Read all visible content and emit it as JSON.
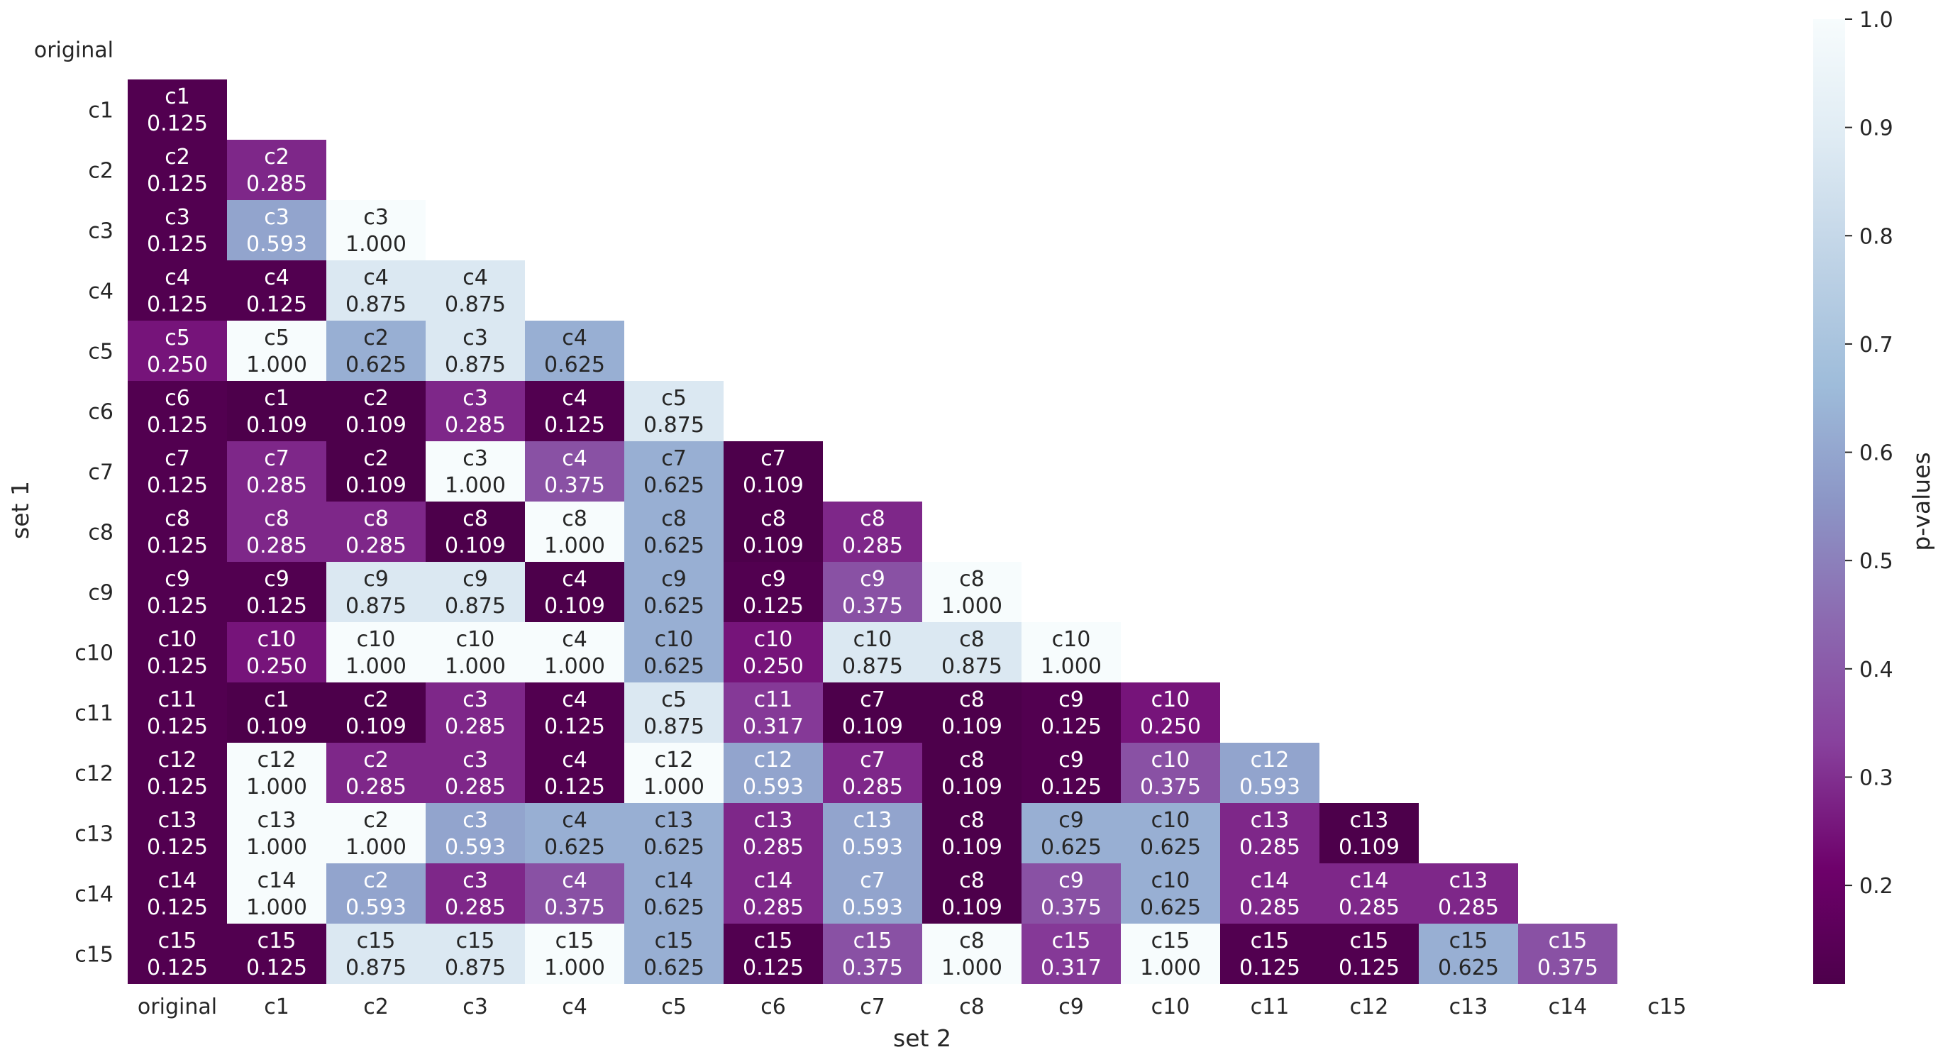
{
  "chart_data": {
    "type": "heatmap",
    "xlabel": "set 2",
    "ylabel": "set 1",
    "colorbar_label": "p-values",
    "row_labels": [
      "original",
      "c1",
      "c2",
      "c3",
      "c4",
      "c5",
      "c6",
      "c7",
      "c8",
      "c9",
      "c10",
      "c11",
      "c12",
      "c13",
      "c14",
      "c15"
    ],
    "col_labels": [
      "original",
      "c1",
      "c2",
      "c3",
      "c4",
      "c5",
      "c6",
      "c7",
      "c8",
      "c9",
      "c10",
      "c11",
      "c12",
      "c13",
      "c14",
      "c15"
    ],
    "colorbar_ticks": [
      "0.2",
      "0.3",
      "0.4",
      "0.5",
      "0.6",
      "0.7",
      "0.8",
      "0.9",
      "1.0"
    ],
    "value_range": [
      0.109,
      1.0
    ],
    "colormap": "BuPu_r",
    "cells": [
      [],
      [
        [
          "c1",
          0.125
        ]
      ],
      [
        [
          "c2",
          0.125
        ],
        [
          "c2",
          0.285
        ]
      ],
      [
        [
          "c3",
          0.125
        ],
        [
          "c3",
          0.593
        ],
        [
          "c3",
          1.0
        ]
      ],
      [
        [
          "c4",
          0.125
        ],
        [
          "c4",
          0.125
        ],
        [
          "c4",
          0.875
        ],
        [
          "c4",
          0.875
        ]
      ],
      [
        [
          "c5",
          0.25
        ],
        [
          "c5",
          1.0
        ],
        [
          "c2",
          0.625
        ],
        [
          "c3",
          0.875
        ],
        [
          "c4",
          0.625
        ]
      ],
      [
        [
          "c6",
          0.125
        ],
        [
          "c1",
          0.109
        ],
        [
          "c2",
          0.109
        ],
        [
          "c3",
          0.285
        ],
        [
          "c4",
          0.125
        ],
        [
          "c5",
          0.875
        ]
      ],
      [
        [
          "c7",
          0.125
        ],
        [
          "c7",
          0.285
        ],
        [
          "c2",
          0.109
        ],
        [
          "c3",
          1.0
        ],
        [
          "c4",
          0.375
        ],
        [
          "c7",
          0.625
        ],
        [
          "c7",
          0.109
        ]
      ],
      [
        [
          "c8",
          0.125
        ],
        [
          "c8",
          0.285
        ],
        [
          "c8",
          0.285
        ],
        [
          "c8",
          0.109
        ],
        [
          "c8",
          1.0
        ],
        [
          "c8",
          0.625
        ],
        [
          "c8",
          0.109
        ],
        [
          "c8",
          0.285
        ]
      ],
      [
        [
          "c9",
          0.125
        ],
        [
          "c9",
          0.125
        ],
        [
          "c9",
          0.875
        ],
        [
          "c9",
          0.875
        ],
        [
          "c4",
          0.109
        ],
        [
          "c9",
          0.625
        ],
        [
          "c9",
          0.125
        ],
        [
          "c9",
          0.375
        ],
        [
          "c8",
          1.0
        ]
      ],
      [
        [
          "c10",
          0.125
        ],
        [
          "c10",
          0.25
        ],
        [
          "c10",
          1.0
        ],
        [
          "c10",
          1.0
        ],
        [
          "c4",
          1.0
        ],
        [
          "c10",
          0.625
        ],
        [
          "c10",
          0.25
        ],
        [
          "c10",
          0.875
        ],
        [
          "c8",
          0.875
        ],
        [
          "c10",
          1.0
        ]
      ],
      [
        [
          "c11",
          0.125
        ],
        [
          "c1",
          0.109
        ],
        [
          "c2",
          0.109
        ],
        [
          "c3",
          0.285
        ],
        [
          "c4",
          0.125
        ],
        [
          "c5",
          0.875
        ],
        [
          "c11",
          0.317
        ],
        [
          "c7",
          0.109
        ],
        [
          "c8",
          0.109
        ],
        [
          "c9",
          0.125
        ],
        [
          "c10",
          0.25
        ]
      ],
      [
        [
          "c12",
          0.125
        ],
        [
          "c12",
          1.0
        ],
        [
          "c2",
          0.285
        ],
        [
          "c3",
          0.285
        ],
        [
          "c4",
          0.125
        ],
        [
          "c12",
          1.0
        ],
        [
          "c12",
          0.593
        ],
        [
          "c7",
          0.285
        ],
        [
          "c8",
          0.109
        ],
        [
          "c9",
          0.125
        ],
        [
          "c10",
          0.375
        ],
        [
          "c12",
          0.593
        ]
      ],
      [
        [
          "c13",
          0.125
        ],
        [
          "c13",
          1.0
        ],
        [
          "c2",
          1.0
        ],
        [
          "c3",
          0.593
        ],
        [
          "c4",
          0.625
        ],
        [
          "c13",
          0.625
        ],
        [
          "c13",
          0.285
        ],
        [
          "c13",
          0.593
        ],
        [
          "c8",
          0.109
        ],
        [
          "c9",
          0.625
        ],
        [
          "c10",
          0.625
        ],
        [
          "c13",
          0.285
        ],
        [
          "c13",
          0.109
        ]
      ],
      [
        [
          "c14",
          0.125
        ],
        [
          "c14",
          1.0
        ],
        [
          "c2",
          0.593
        ],
        [
          "c3",
          0.285
        ],
        [
          "c4",
          0.375
        ],
        [
          "c14",
          0.625
        ],
        [
          "c14",
          0.285
        ],
        [
          "c7",
          0.593
        ],
        [
          "c8",
          0.109
        ],
        [
          "c9",
          0.375
        ],
        [
          "c10",
          0.625
        ],
        [
          "c14",
          0.285
        ],
        [
          "c14",
          0.285
        ],
        [
          "c13",
          0.285
        ]
      ],
      [
        [
          "c15",
          0.125
        ],
        [
          "c15",
          0.125
        ],
        [
          "c15",
          0.875
        ],
        [
          "c15",
          0.875
        ],
        [
          "c15",
          1.0
        ],
        [
          "c15",
          0.625
        ],
        [
          "c15",
          0.125
        ],
        [
          "c15",
          0.375
        ],
        [
          "c8",
          1.0
        ],
        [
          "c15",
          0.317
        ],
        [
          "c15",
          1.0
        ],
        [
          "c15",
          0.125
        ],
        [
          "c15",
          0.125
        ],
        [
          "c15",
          0.625
        ],
        [
          "c15",
          0.375
        ]
      ]
    ]
  }
}
